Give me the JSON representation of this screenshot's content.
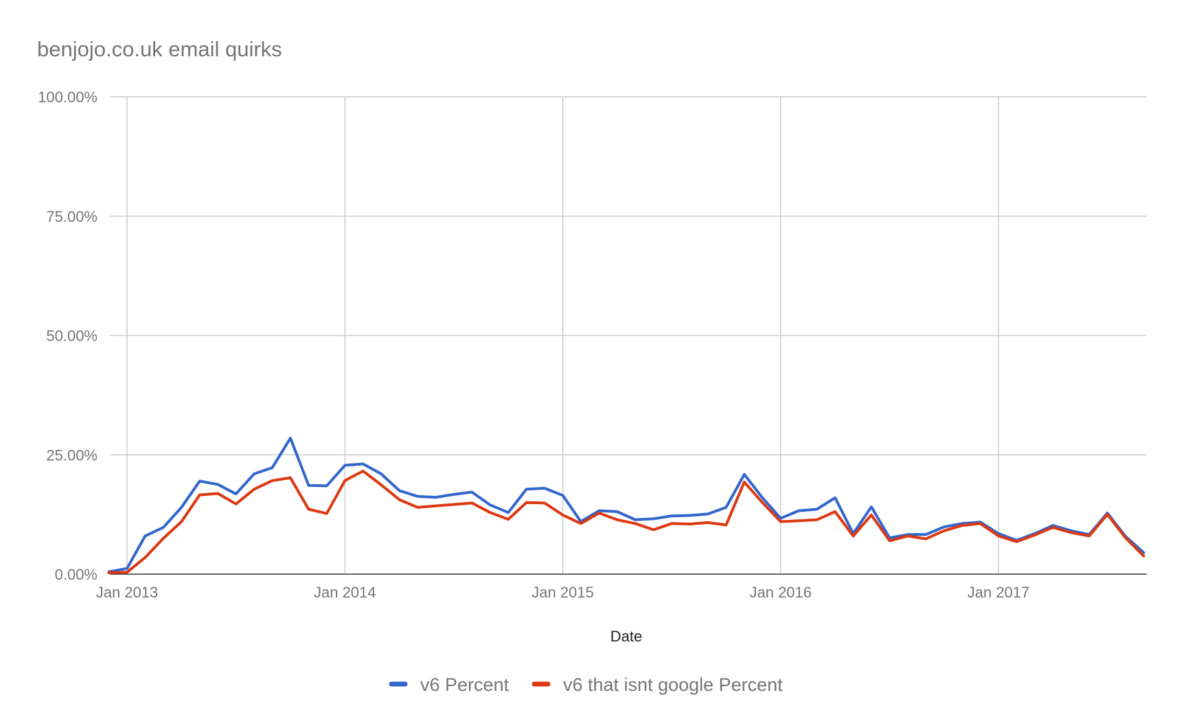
{
  "chart_data": {
    "type": "line",
    "title": "benjojo.co.uk email quirks",
    "xlabel": "Date",
    "ylabel": "",
    "ylim": [
      0,
      100
    ],
    "y_ticks": [
      "0.00%",
      "25.00%",
      "50.00%",
      "75.00%",
      "100.00%"
    ],
    "y_tick_values": [
      0,
      25,
      50,
      75,
      100
    ],
    "x_ticks": [
      "Jan 2013",
      "Jan 2014",
      "Jan 2015",
      "Jan 2016",
      "Jan 2017"
    ],
    "x_tick_values": [
      "2013-01",
      "2014-01",
      "2015-01",
      "2016-01",
      "2017-01"
    ],
    "xlim": [
      "2012-12",
      "2017-09"
    ],
    "grid": true,
    "legend_position": "bottom",
    "x": [
      "2012-12",
      "2013-01",
      "2013-02",
      "2013-03",
      "2013-04",
      "2013-05",
      "2013-06",
      "2013-07",
      "2013-08",
      "2013-09",
      "2013-10",
      "2013-11",
      "2013-12",
      "2014-01",
      "2014-02",
      "2014-03",
      "2014-04",
      "2014-05",
      "2014-06",
      "2014-07",
      "2014-08",
      "2014-09",
      "2014-10",
      "2014-11",
      "2014-12",
      "2015-01",
      "2015-02",
      "2015-03",
      "2015-04",
      "2015-05",
      "2015-06",
      "2015-07",
      "2015-08",
      "2015-09",
      "2015-10",
      "2015-11",
      "2015-12",
      "2016-01",
      "2016-02",
      "2016-03",
      "2016-04",
      "2016-05",
      "2016-06",
      "2016-07",
      "2016-08",
      "2016-09",
      "2016-10",
      "2016-11",
      "2016-12",
      "2017-01",
      "2017-02",
      "2017-03",
      "2017-04",
      "2017-05",
      "2017-06",
      "2017-07",
      "2017-08",
      "2017-09"
    ],
    "series": [
      {
        "name": "v6 Percent",
        "color": "#3366cc",
        "values": [
          0.5,
          1.2,
          8.0,
          9.8,
          14.0,
          19.5,
          18.8,
          16.8,
          21.0,
          22.3,
          28.5,
          18.6,
          18.5,
          22.8,
          23.1,
          21.0,
          17.5,
          16.3,
          16.1,
          16.7,
          17.2,
          14.5,
          12.9,
          17.8,
          18.0,
          16.5,
          11.0,
          13.3,
          13.1,
          11.4,
          11.6,
          12.2,
          12.3,
          12.6,
          14.0,
          20.9,
          16.0,
          11.7,
          13.3,
          13.6,
          16.0,
          8.5,
          14.1,
          7.6,
          8.3,
          8.3,
          9.9,
          10.6,
          10.9,
          8.5,
          7.1,
          8.5,
          10.2,
          9.1,
          8.3,
          12.8,
          7.9,
          4.5
        ]
      },
      {
        "name": "v6 that isnt google Percent",
        "color": "#dc3912",
        "values": [
          0.3,
          0.4,
          3.5,
          7.5,
          11.0,
          16.6,
          16.9,
          14.7,
          17.8,
          19.6,
          20.2,
          13.6,
          12.7,
          19.6,
          21.6,
          18.7,
          15.6,
          14.0,
          14.3,
          14.6,
          14.9,
          12.9,
          11.5,
          15.0,
          14.9,
          12.4,
          10.6,
          12.8,
          11.4,
          10.6,
          9.3,
          10.6,
          10.5,
          10.8,
          10.3,
          19.3,
          15.0,
          11.0,
          11.2,
          11.4,
          13.1,
          8.0,
          12.4,
          7.0,
          8.0,
          7.4,
          9.1,
          10.2,
          10.6,
          8.0,
          6.8,
          8.2,
          9.8,
          8.7,
          8.0,
          12.5,
          7.6,
          3.8
        ]
      }
    ]
  }
}
